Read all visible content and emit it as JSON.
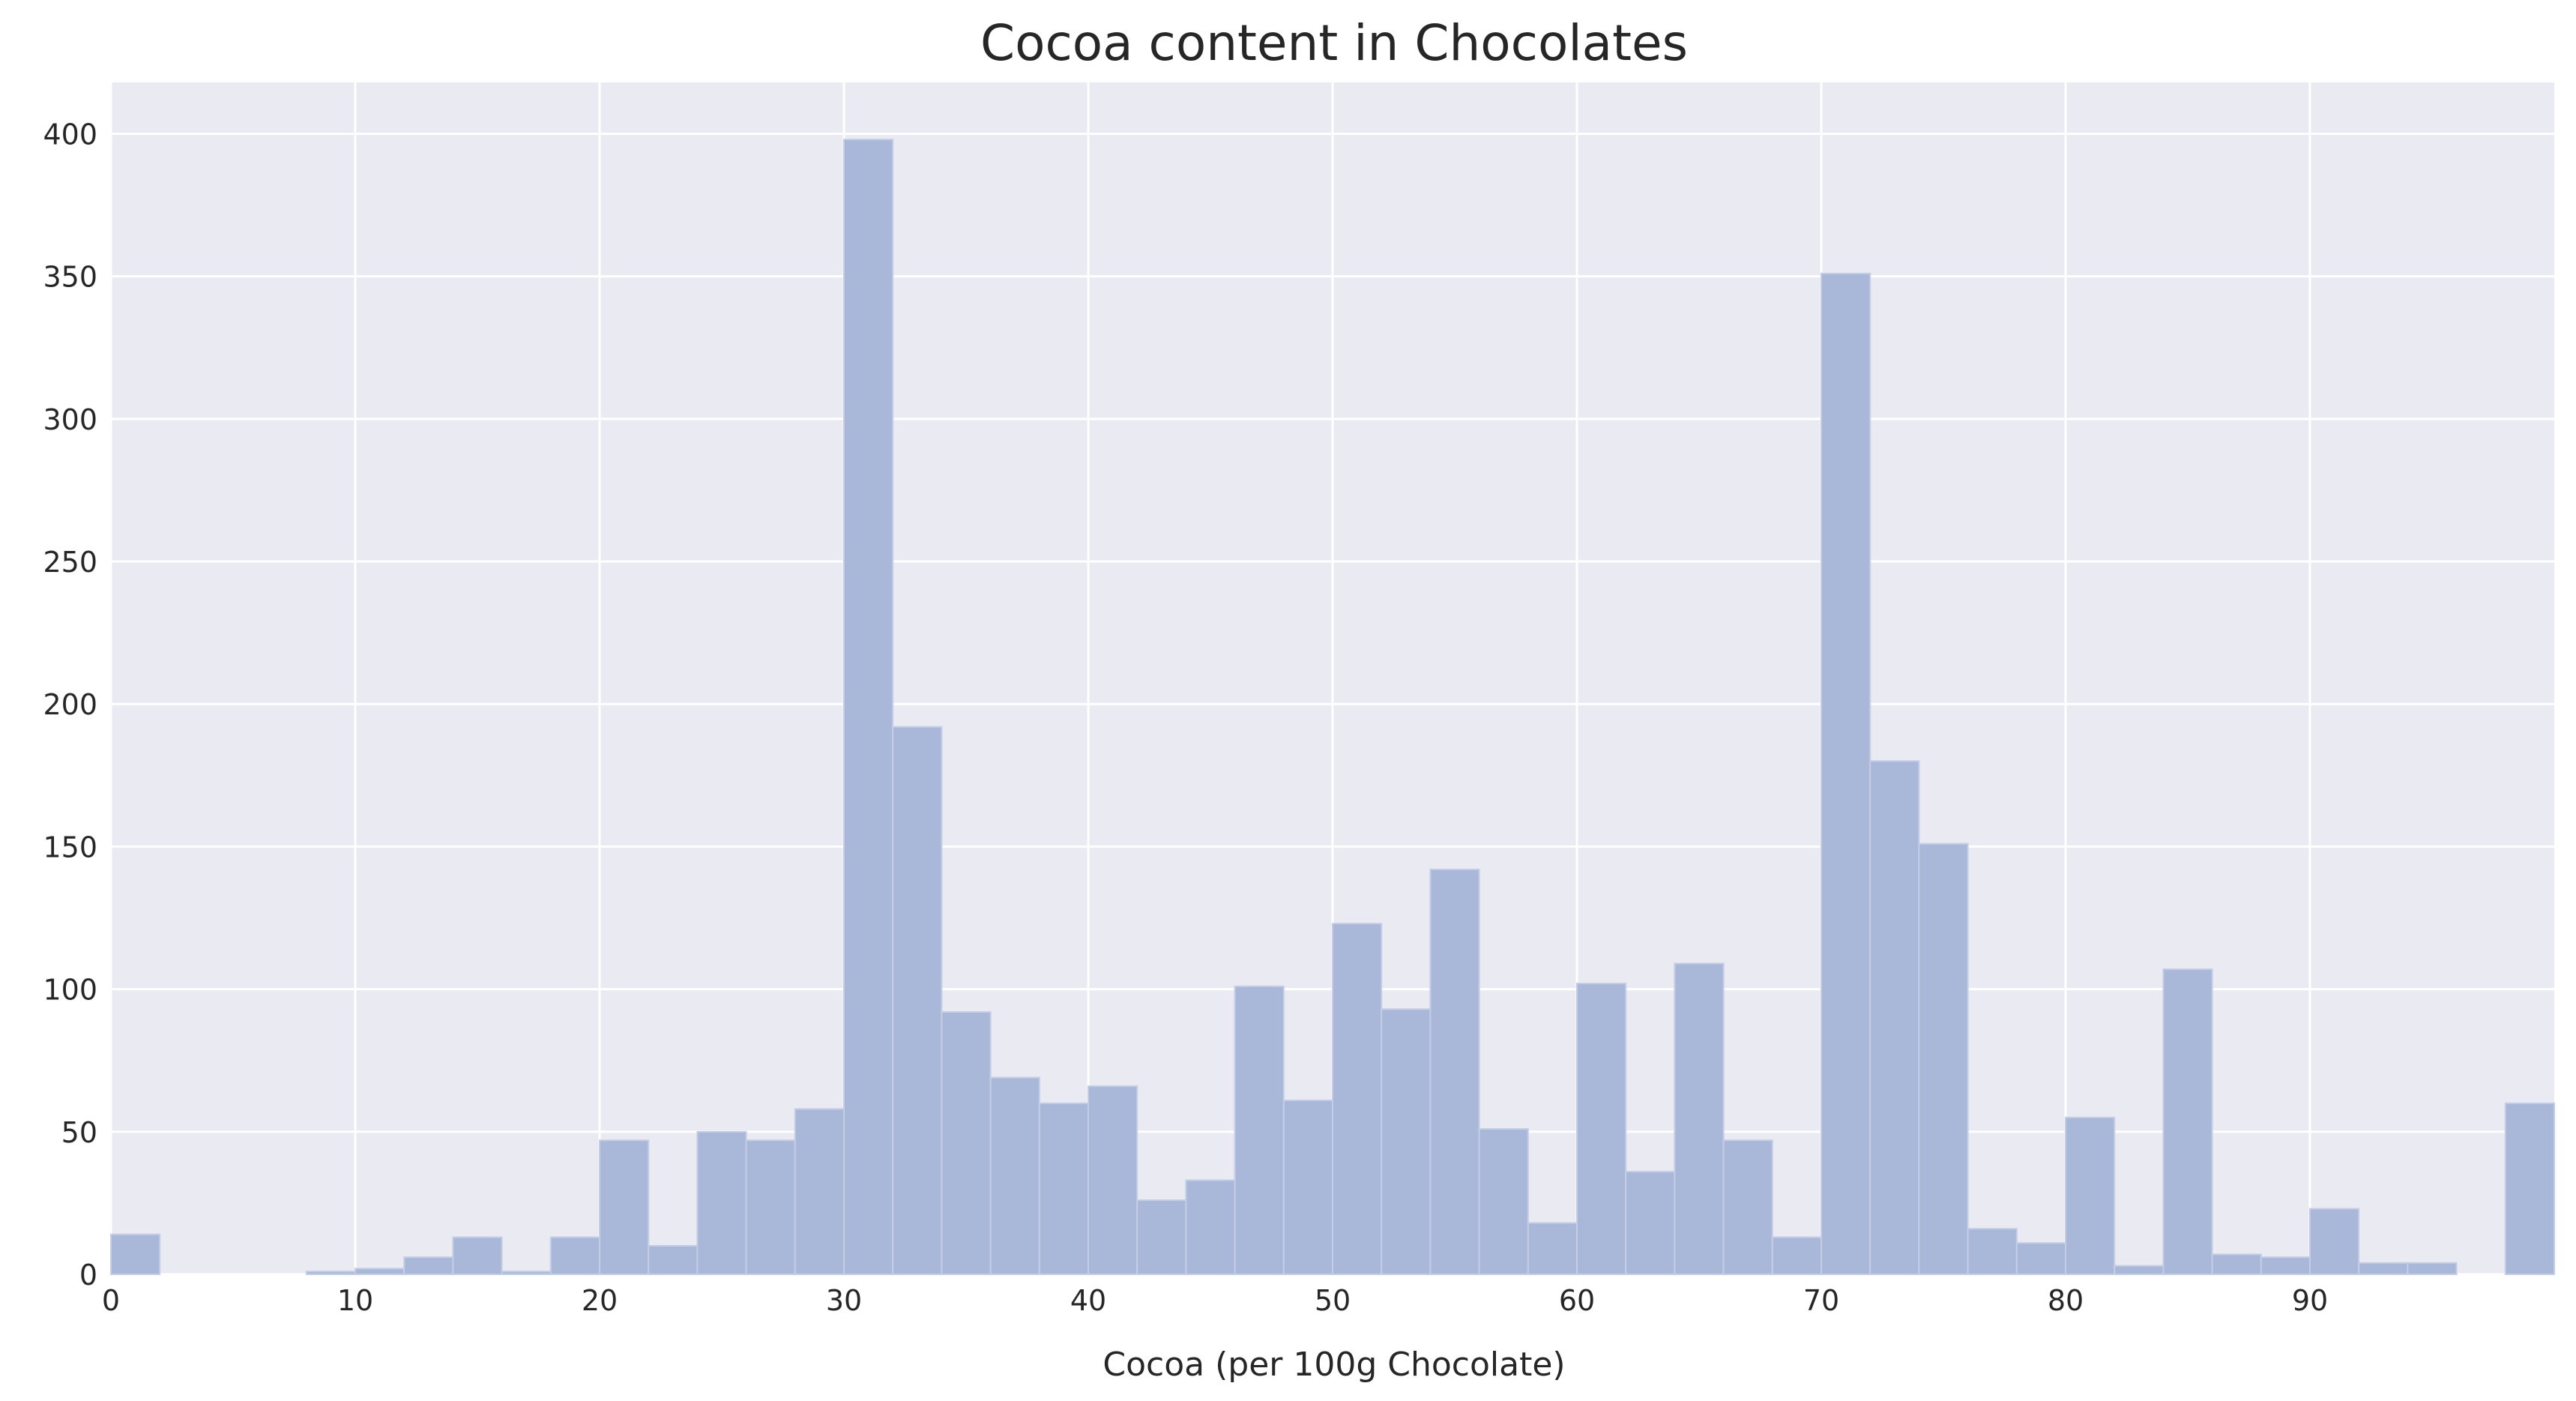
{
  "chart_data": {
    "type": "bar",
    "title": "Cocoa content in Chocolates",
    "xlabel": "Cocoa (per 100g Chocolate)",
    "ylabel": "",
    "xlim": [
      0,
      100
    ],
    "ylim": [
      0,
      418
    ],
    "xticks": [
      0,
      10,
      20,
      30,
      40,
      50,
      60,
      70,
      80,
      90
    ],
    "yticks": [
      0,
      50,
      100,
      150,
      200,
      250,
      300,
      350,
      400
    ],
    "grid": true,
    "bin_width": 2,
    "bins": [
      0,
      2,
      4,
      6,
      8,
      10,
      12,
      14,
      16,
      18,
      20,
      22,
      24,
      26,
      28,
      30,
      32,
      34,
      36,
      38,
      40,
      42,
      44,
      46,
      48,
      50,
      52,
      54,
      56,
      58,
      60,
      62,
      64,
      66,
      68,
      70,
      72,
      74,
      76,
      78,
      80,
      82,
      84,
      86,
      88,
      90,
      92,
      94,
      96,
      98
    ],
    "values": [
      14,
      0,
      0,
      0,
      1,
      2,
      6,
      13,
      1,
      13,
      47,
      10,
      50,
      47,
      58,
      398,
      192,
      92,
      69,
      60,
      66,
      26,
      33,
      101,
      61,
      123,
      93,
      142,
      51,
      18,
      102,
      36,
      109,
      47,
      13,
      351,
      180,
      151,
      16,
      11,
      55,
      3,
      107,
      7,
      6,
      23,
      4,
      4,
      0,
      60
    ],
    "colors": {
      "background": "#eaeaf2",
      "bar": "#a9b8d8",
      "grid": "#ffffff"
    }
  }
}
